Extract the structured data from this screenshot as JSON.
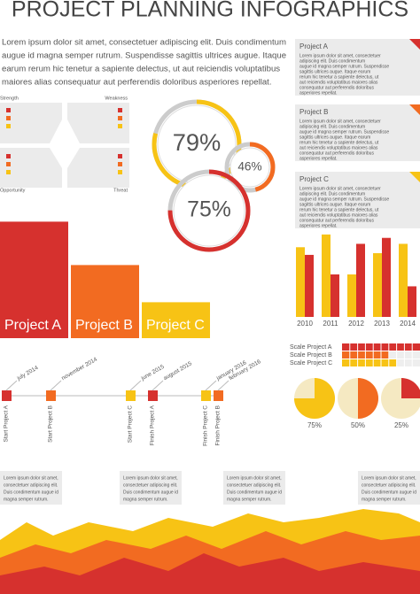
{
  "title": "PROJECT PLANNING INFOGRAPHICS",
  "intro": [
    "Lorem ipsum dolor sit amet, consectetuer adipiscing elit. Duis condimentum",
    "augue id magna semper rutrum. Suspendisse sagittis ultrices augue. Itaque",
    "earum rerum hic tenetur a sapiente delectus, ut aut reiciendis voluptatibus",
    "maiores alias consequatur aut perferendis doloribus asperiores repellat."
  ],
  "boxes": [
    {
      "title": "Project A",
      "lines": [
        "Lorem ipsum dolor sit amet, consectetuer",
        "adipiscing elit. Duis condimentum",
        "augue id magna semper rutrum. Suspendisse",
        "sagittis ultrices augue. Itaque earum",
        "rerum hic tenetur a sapiente delectus, ut",
        "aut reiciendis voluptatibus maiores alias",
        "consequatur aut perferendis doloribus",
        "asperiores repellat."
      ]
    },
    {
      "title": "Project B",
      "lines": [
        "Lorem ipsum dolor sit amet, consectetuer",
        "adipiscing elit. Duis condimentum",
        "augue id magna semper rutrum. Suspendisse",
        "sagittis ultrices augue. Itaque earum",
        "rerum hic tenetur a sapiente delectus, ut",
        "aut reiciendis voluptatibus maiores alias",
        "consequatur aut perferendis doloribus",
        "asperiores repellat."
      ]
    },
    {
      "title": "Project C",
      "lines": [
        "Lorem ipsum dolor sit amet, consectetuer",
        "adipiscing elit. Duis condimentum",
        "augue id magna semper rutrum. Suspendisse",
        "sagittis ultrices augue. Itaque earum",
        "rerum hic tenetur a sapiente delectus, ut",
        "aut reiciendis voluptatibus maiores alias",
        "consequatur aut perferendis doloribus",
        "asperiores repellat."
      ]
    }
  ],
  "swot": [
    "Strength",
    "Weakness",
    "Opportunity",
    "Threat"
  ],
  "timeline": [
    {
      "date": "july 2014",
      "label": "Start Project A",
      "color": "#d6312e"
    },
    {
      "date": "november 2014",
      "label": "Start Project B",
      "color": "#f26b21"
    },
    {
      "date": "june 2015",
      "label": "Start Project C",
      "color": "#f7c315"
    },
    {
      "date": "august 2015",
      "label": "Finish Project A",
      "color": "#d6312e"
    },
    {
      "date": "january 2016",
      "label": "Finish Project C",
      "color": "#f7c315"
    },
    {
      "date": "february 2016",
      "label": "Finish Project B",
      "color": "#f26b21"
    }
  ],
  "callouts": [
    [
      "Lorem ipsum dolor sit amet,",
      "consectetuer adipiscing elit.",
      "Duis condimentum augue id",
      "magna semper rutrum."
    ],
    [
      "Lorem ipsum dolor sit amet,",
      "consectetuer adipiscing elit.",
      "Duis condimentum augue id",
      "magna semper rutrum."
    ],
    [
      "Lorem ipsum dolor sit amet,",
      "consectetuer adipiscing elit.",
      "Duis condimentum augue id",
      "magna semper rutrum."
    ],
    [
      "Lorem ipsum dolor sit amet,",
      "consectetuer adipiscing elit.",
      "Duis condimentum augue id",
      "magna semper rutrum."
    ]
  ],
  "chart_data": [
    {
      "type": "ring",
      "values": [
        79,
        46,
        75
      ],
      "value_labels": [
        "79%",
        "46%",
        "75%"
      ],
      "colors": [
        "#f7c315",
        "#f26b21",
        "#d6312e"
      ],
      "ylim": [
        0,
        100
      ]
    },
    {
      "type": "bar",
      "categories": [
        "Project A",
        "Project B",
        "Project C"
      ],
      "values": [
        94,
        59,
        29
      ],
      "colors": [
        "#d6312e",
        "#f26b21",
        "#f7c315"
      ],
      "ylim": [
        0,
        100
      ]
    },
    {
      "type": "grouped",
      "categories": [
        "2010",
        "2011",
        "2012",
        "2013",
        "2014"
      ],
      "ylim": [
        0,
        100
      ],
      "series": [
        {
          "color": "#f7c315",
          "values": [
            82,
            97,
            50,
            75,
            86
          ]
        },
        {
          "color": "#d6312e",
          "values": [
            73,
            50,
            86,
            93,
            36
          ]
        }
      ]
    },
    {
      "type": "scale",
      "categories": [
        "Scale Project A",
        "Scale Project B",
        "Scale Project C"
      ],
      "values": [
        10,
        6,
        7
      ],
      "colors": [
        "#d6312e",
        "#f26b21",
        "#f7c315"
      ],
      "ylim": [
        0,
        10
      ]
    },
    {
      "type": "pie",
      "values": [
        75,
        50,
        25
      ],
      "value_labels": [
        "75%",
        "50%",
        "25%"
      ],
      "colors": [
        "#f7c315",
        "#f26b21",
        "#d6312e"
      ],
      "ylim": [
        0,
        100
      ]
    }
  ]
}
